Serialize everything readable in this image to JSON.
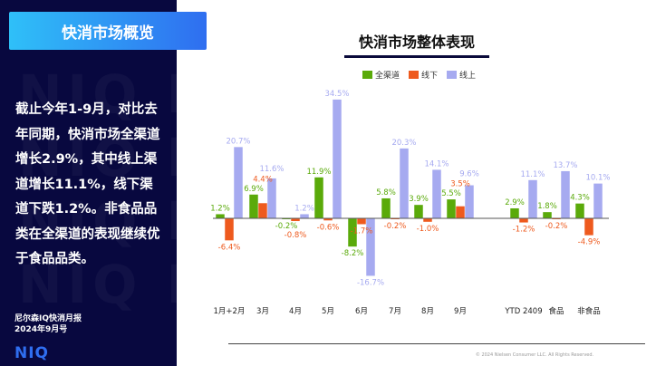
{
  "sidebar": {
    "title": "快消市场概览",
    "summary": "截止今年1-9月，对比去年同期，快消市场全渠道增长2.9%，其中线上渠道增长11.1%，线下渠道下跌1.2%。非食品品类在全渠道的表现继续优于食品品类。",
    "report_line1": "尼尔森IQ快消月报",
    "report_line2": "2024年9月号",
    "logo_text": "NIQ",
    "background_color": "#08083f",
    "watermark": "NIQ"
  },
  "footer": {
    "copyright": "© 2024 Nielsen Consumer LLC. All Rights Reserved."
  },
  "chart_data": {
    "type": "bar",
    "title": "快消市场整体表现",
    "categories": [
      "1月+2月",
      "3月",
      "4月",
      "5月",
      "6月",
      "7月",
      "8月",
      "9月",
      "YTD 2409",
      "食品",
      "非食品"
    ],
    "series": [
      {
        "name": "全渠道",
        "color": "#5aaa0a",
        "values": [
          1.2,
          6.9,
          -0.2,
          11.9,
          -8.2,
          5.8,
          3.9,
          5.5,
          2.9,
          1.8,
          4.3
        ],
        "labels": [
          "1.2%",
          "6.9%",
          "-0.2%",
          "11.9%",
          "-8.2%",
          "5.8%",
          "3.9%",
          "5.5%",
          "2.9%",
          "1.8%",
          "4.3%"
        ]
      },
      {
        "name": "线下",
        "color": "#ee5a1e",
        "values": [
          -6.4,
          4.4,
          -0.8,
          -0.6,
          -1.7,
          -0.2,
          -1.0,
          3.5,
          -1.2,
          -0.2,
          -4.9
        ],
        "labels": [
          "-6.4%",
          "4.4%",
          "-0.8%",
          "-0.6%",
          "-1.7%",
          "-0.2%",
          "-1.0%",
          "3.5%",
          "-1.2%",
          "-0.2%",
          "-4.9%"
        ]
      },
      {
        "name": "线上",
        "color": "#a6aaf0",
        "values": [
          20.7,
          11.6,
          1.2,
          34.5,
          -16.7,
          20.3,
          14.1,
          9.6,
          11.1,
          13.7,
          10.1
        ],
        "labels": [
          "20.7%",
          "11.6%",
          "1.2%",
          "34.5%",
          "-16.7%",
          "20.3%",
          "14.1%",
          "9.6%",
          "11.1%",
          "13.7%",
          "10.1%"
        ]
      }
    ],
    "legend": "top",
    "grid": false,
    "y_axis_visible": false
  }
}
